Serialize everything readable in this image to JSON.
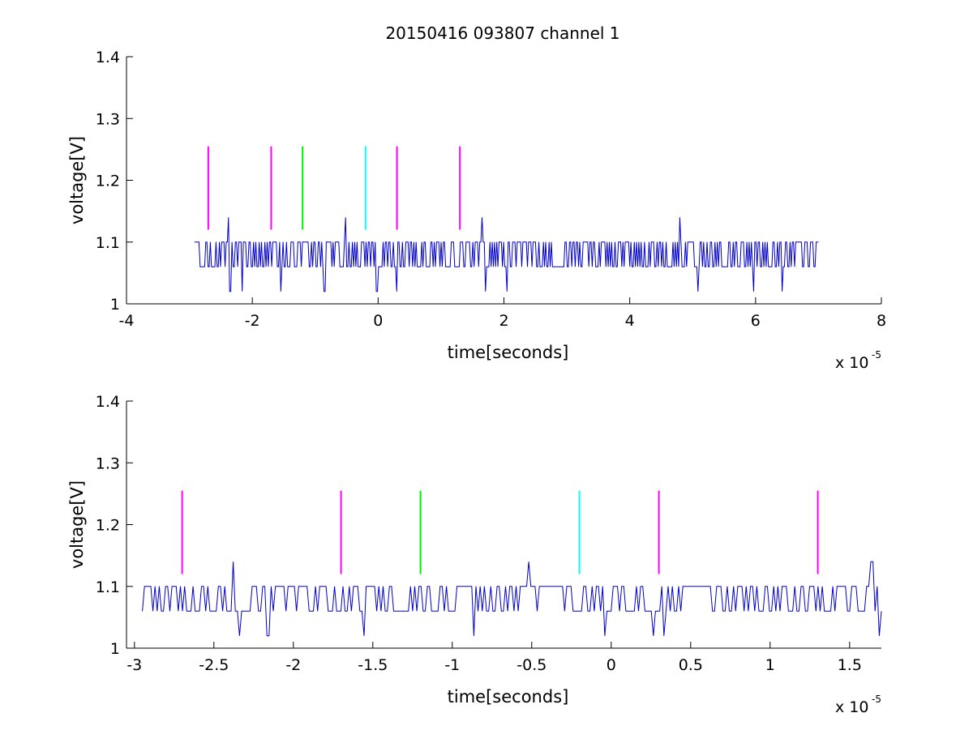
{
  "title": "20150416 093807 channel 1",
  "chart_data": [
    {
      "type": "line",
      "name": "overview",
      "xlabel": "time[seconds]",
      "ylabel": "voltage[V]",
      "xlim": [
        -4,
        8
      ],
      "ylim": [
        1,
        1.4
      ],
      "x_scale_label": "x 10",
      "x_scale_exponent": "-5",
      "x_tick_values": [
        -4,
        -2,
        0,
        2,
        4,
        6,
        8
      ],
      "x_tick_labels": [
        "-4",
        "-2",
        "0",
        "2",
        "4",
        "6",
        "8"
      ],
      "y_tick_values": [
        1,
        1.1,
        1.2,
        1.3,
        1.4
      ],
      "y_tick_labels": [
        "1",
        "1.1",
        "1.2",
        "1.3",
        "1.4"
      ],
      "grid": false,
      "series": [
        {
          "color": "#0000cc",
          "x_range": [
            -2.92,
            7.0
          ],
          "levels": [
            1.06,
            1.1
          ],
          "spikes": [
            {
              "x": -2.38,
              "y": 1.14
            },
            {
              "x": -2.35,
              "y": 1.02
            },
            {
              "x": -2.16,
              "y": 1.02
            },
            {
              "x": -1.55,
              "y": 1.02
            },
            {
              "x": -0.85,
              "y": 1.02
            },
            {
              "x": -0.52,
              "y": 1.14
            },
            {
              "x": -0.02,
              "y": 1.02
            },
            {
              "x": 0.29,
              "y": 1.02
            },
            {
              "x": 1.65,
              "y": 1.14
            },
            {
              "x": 1.7,
              "y": 1.02
            },
            {
              "x": 2.05,
              "y": 1.02
            },
            {
              "x": 4.8,
              "y": 1.14
            },
            {
              "x": 5.08,
              "y": 1.02
            },
            {
              "x": 5.97,
              "y": 1.02
            },
            {
              "x": 6.42,
              "y": 1.02
            }
          ]
        }
      ],
      "markers": [
        {
          "x": -2.7,
          "y_range": [
            1.12,
            1.255
          ],
          "color": "#ff00ff"
        },
        {
          "x": -1.7,
          "y_range": [
            1.12,
            1.255
          ],
          "color": "#ff00ff"
        },
        {
          "x": -1.2,
          "y_range": [
            1.12,
            1.255
          ],
          "color": "#00ee00"
        },
        {
          "x": -0.2,
          "y_range": [
            1.12,
            1.255
          ],
          "color": "#00ffff"
        },
        {
          "x": 0.3,
          "y_range": [
            1.12,
            1.255
          ],
          "color": "#ff00ff"
        },
        {
          "x": 1.3,
          "y_range": [
            1.12,
            1.255
          ],
          "color": "#ff00ff"
        }
      ]
    },
    {
      "type": "line",
      "name": "zoom",
      "xlabel": "time[seconds]",
      "ylabel": "voltage[V]",
      "xlim": [
        -3.05,
        1.7
      ],
      "ylim": [
        1,
        1.4
      ],
      "x_scale_label": "x 10",
      "x_scale_exponent": "-5",
      "x_tick_values": [
        -3,
        -2.5,
        -2,
        -1.5,
        -1,
        -0.5,
        0,
        0.5,
        1,
        1.5
      ],
      "x_tick_labels": [
        "-3",
        "-2.5",
        "-2",
        "-1.5",
        "-1",
        "-0.5",
        "0",
        "0.5",
        "1",
        "1.5"
      ],
      "y_tick_values": [
        1,
        1.1,
        1.2,
        1.3,
        1.4
      ],
      "y_tick_labels": [
        "1",
        "1.1",
        "1.2",
        "1.3",
        "1.4"
      ],
      "grid": false,
      "series": [
        {
          "color": "#0000cc",
          "x_range": [
            -2.95,
            1.7
          ],
          "levels": [
            1.06,
            1.1
          ],
          "flat_segments": [
            [
              -2.42,
              -2.26,
              1.06
            ],
            [
              -0.45,
              -0.3,
              1.1
            ],
            [
              0.45,
              0.62,
              1.1
            ]
          ],
          "spikes": [
            {
              "x": -2.38,
              "y": 1.14
            },
            {
              "x": -2.34,
              "y": 1.02
            },
            {
              "x": -2.16,
              "y": 1.02
            },
            {
              "x": -1.55,
              "y": 1.02
            },
            {
              "x": -0.86,
              "y": 1.02
            },
            {
              "x": -0.52,
              "y": 1.14
            },
            {
              "x": -0.04,
              "y": 1.02
            },
            {
              "x": 0.27,
              "y": 1.02
            },
            {
              "x": 0.33,
              "y": 1.02
            },
            {
              "x": 1.64,
              "y": 1.14
            },
            {
              "x": 1.69,
              "y": 1.02
            }
          ]
        }
      ],
      "markers": [
        {
          "x": -2.7,
          "y_range": [
            1.12,
            1.255
          ],
          "color": "#ff00ff"
        },
        {
          "x": -1.7,
          "y_range": [
            1.12,
            1.255
          ],
          "color": "#ff00ff"
        },
        {
          "x": -1.2,
          "y_range": [
            1.12,
            1.255
          ],
          "color": "#00ee00"
        },
        {
          "x": -0.2,
          "y_range": [
            1.12,
            1.255
          ],
          "color": "#00ffff"
        },
        {
          "x": 0.3,
          "y_range": [
            1.12,
            1.255
          ],
          "color": "#ff00ff"
        },
        {
          "x": 1.3,
          "y_range": [
            1.12,
            1.255
          ],
          "color": "#ff00ff"
        }
      ]
    }
  ]
}
